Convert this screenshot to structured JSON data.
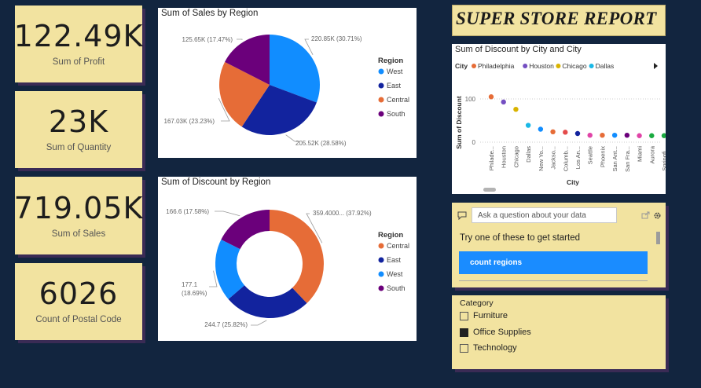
{
  "kpis": [
    {
      "value": "122.49K",
      "label": "Sum of Profit"
    },
    {
      "value": "23K",
      "label": "Sum of Quantity"
    },
    {
      "value": "719.05K",
      "label": "Sum of Sales"
    },
    {
      "value": "6026",
      "label": "Count of Postal Code"
    }
  ],
  "report_title": "SUPER STORE REPORT",
  "chart_data": [
    {
      "type": "pie",
      "title": "Sum of Sales by Region",
      "legend_title": "Region",
      "legend_position": "right",
      "slices": [
        {
          "name": "West",
          "value": 220.85,
          "label": "220.85K (30.71%)",
          "color": "#118dff"
        },
        {
          "name": "East",
          "value": 205.52,
          "label": "205.52K (28.58%)",
          "color": "#12239e"
        },
        {
          "name": "Central",
          "value": 167.03,
          "label": "167.03K (23.23%)",
          "color": "#e66c37"
        },
        {
          "name": "South",
          "value": 125.65,
          "label": "125.65K (17.47%)",
          "color": "#6b007b"
        }
      ]
    },
    {
      "type": "pie",
      "title": "Sum of Discount by Region",
      "legend_title": "Region",
      "legend_position": "right",
      "donut": true,
      "slices": [
        {
          "name": "Central",
          "value": 359.4,
          "label": "359.4000... (37.92%)",
          "color": "#e66c37"
        },
        {
          "name": "East",
          "value": 244.7,
          "label": "244.7 (25.82%)",
          "color": "#12239e"
        },
        {
          "name": "West",
          "value": 177.1,
          "label": "177.1 (18.69%)",
          "color": "#118dff"
        },
        {
          "name": "South",
          "value": 166.6,
          "label": "166.6 (17.58%)",
          "color": "#6b007b"
        }
      ]
    },
    {
      "type": "scatter",
      "title": "Sum of Discount by City and City",
      "legend_title": "City",
      "legend_position": "top",
      "xlabel": "City",
      "ylabel": "Sum of Discount",
      "yticks": [
        "100",
        "0"
      ],
      "ylim": [
        0,
        130
      ],
      "grid": true,
      "legend": [
        {
          "name": "Philadelphia",
          "color": "#e66c37"
        },
        {
          "name": "Houston",
          "color": "#744ec2"
        },
        {
          "name": "Chicago",
          "color": "#d9b300"
        },
        {
          "name": "Dallas",
          "color": "#1ab8e6"
        }
      ],
      "points": [
        {
          "x": "Philade...",
          "y": 105,
          "color": "#e66c37"
        },
        {
          "x": "Houston",
          "y": 93,
          "color": "#744ec2"
        },
        {
          "x": "Chicago",
          "y": 76,
          "color": "#d9b300"
        },
        {
          "x": "Dallas",
          "y": 39,
          "color": "#1ab8e6"
        },
        {
          "x": "New Yo...",
          "y": 30,
          "color": "#118dff"
        },
        {
          "x": "Jackso...",
          "y": 24,
          "color": "#e66c37"
        },
        {
          "x": "Columb...",
          "y": 23,
          "color": "#e44a4a"
        },
        {
          "x": "Los An...",
          "y": 20,
          "color": "#12239e"
        },
        {
          "x": "Seattle",
          "y": 16,
          "color": "#e044a7"
        },
        {
          "x": "Phoenix",
          "y": 16,
          "color": "#e66c37"
        },
        {
          "x": "San Ant...",
          "y": 16,
          "color": "#118dff"
        },
        {
          "x": "San Fra...",
          "y": 16,
          "color": "#6b007b"
        },
        {
          "x": "Miami",
          "y": 15,
          "color": "#e044a7"
        },
        {
          "x": "Aurora",
          "y": 15,
          "color": "#1aab40"
        },
        {
          "x": "Springfi...",
          "y": 15,
          "color": "#1aab40"
        }
      ]
    }
  ],
  "qa": {
    "placeholder": "Ask a question about your data",
    "prompt": "Try one of these to get started",
    "suggestion": "count regions"
  },
  "slicer": {
    "title": "Category",
    "items": [
      {
        "label": "Furniture",
        "checked": false
      },
      {
        "label": "Office Supplies",
        "checked": true
      },
      {
        "label": "Technology",
        "checked": false
      }
    ]
  }
}
